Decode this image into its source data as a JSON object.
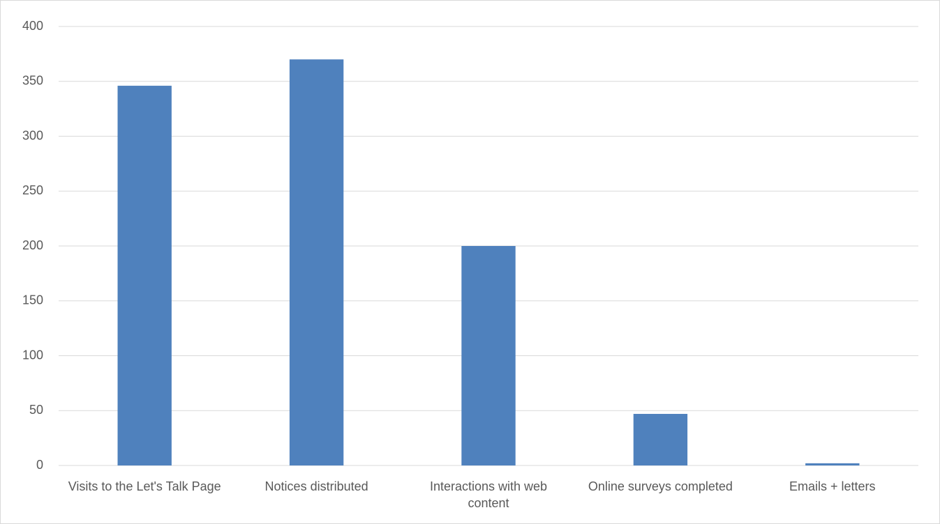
{
  "chart_data": {
    "type": "bar",
    "categories": [
      "Visits to the Let's Talk Page",
      "Notices distributed",
      "Interactions with web content",
      "Online surveys completed",
      "Emails + letters"
    ],
    "values": [
      346,
      370,
      200,
      47,
      2
    ],
    "color": "#4f81bd",
    "ylim": [
      0,
      400
    ],
    "yticks": [
      0,
      50,
      100,
      150,
      200,
      250,
      300,
      350,
      400
    ],
    "grid": true
  }
}
